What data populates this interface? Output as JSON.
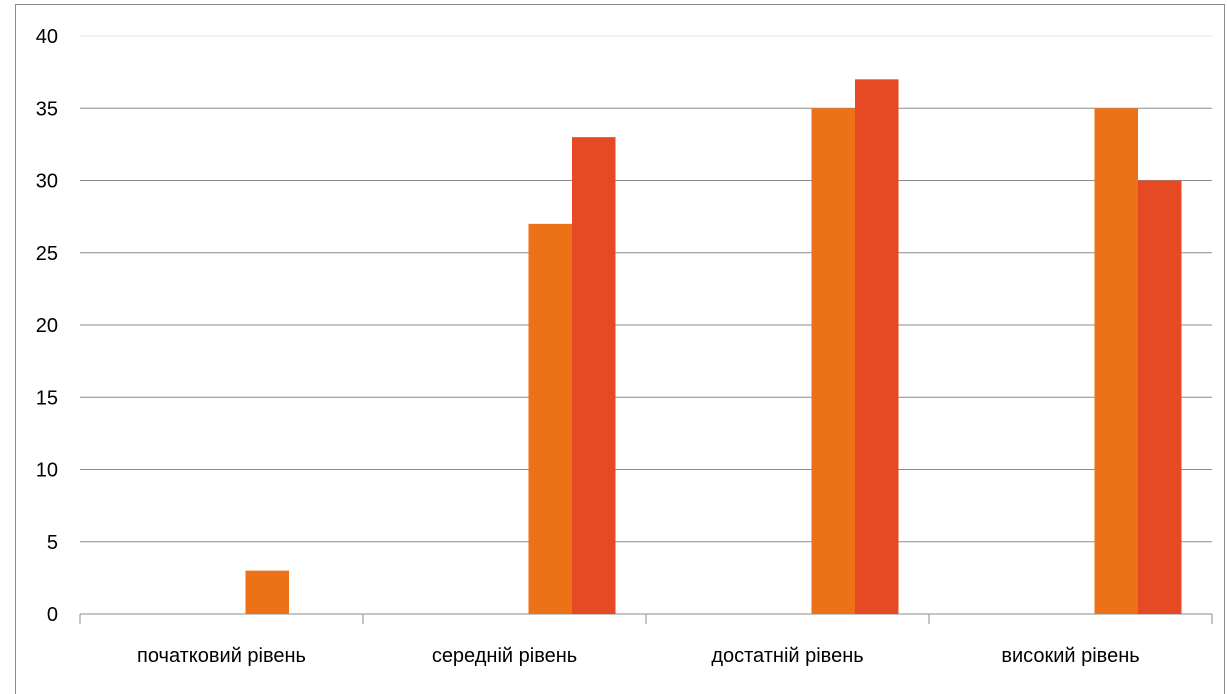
{
  "chart_data": {
    "type": "bar",
    "categories": [
      "початковий рівень",
      "середній рівень",
      "достатній рівень",
      "високий рівень"
    ],
    "series": [
      {
        "values": [
          3,
          27,
          35,
          35
        ],
        "color": "#ed7117"
      },
      {
        "values": [
          0,
          33,
          37,
          30
        ],
        "color": "#e64a24"
      }
    ],
    "ylim": [
      0,
      40
    ],
    "yticks": [
      0,
      5,
      10,
      15,
      20,
      25,
      30,
      35,
      40
    ],
    "grid": true,
    "legend": "none"
  }
}
